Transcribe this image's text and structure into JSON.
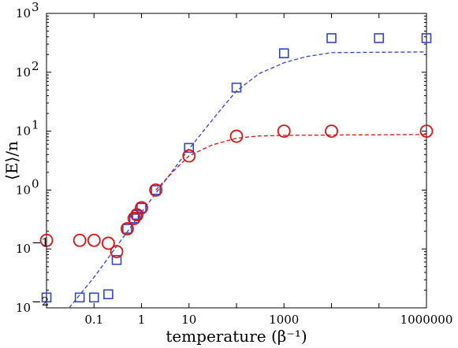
{
  "chart_data": {
    "type": "scatter",
    "title": "",
    "xlabel": "temperature (β⁻¹)",
    "ylabel": "⟨E⟩/n",
    "x_scale": "log",
    "y_scale": "log",
    "xlim": [
      0.01,
      1000000
    ],
    "ylim": [
      0.01,
      1000
    ],
    "grid": false,
    "x_tick_labels": [
      {
        "value": 0.1,
        "label": "0.1"
      },
      {
        "value": 1,
        "label": "1"
      },
      {
        "value": 10,
        "label": "10"
      },
      {
        "value": 1000,
        "label": "1000"
      },
      {
        "value": 1000000,
        "label": "1000000"
      }
    ],
    "y_tick_labels": [
      {
        "value": 0.01,
        "base": "10",
        "exp": "−2"
      },
      {
        "value": 0.1,
        "base": "10",
        "exp": "−1"
      },
      {
        "value": 1,
        "base": "10",
        "exp": "0"
      },
      {
        "value": 10,
        "base": "10",
        "exp": "1"
      },
      {
        "value": 100,
        "base": "10",
        "exp": "2"
      },
      {
        "value": 1000,
        "base": "10",
        "exp": "3"
      }
    ],
    "series": [
      {
        "marker": "square",
        "color": "#3344cc",
        "points": [
          [
            0.01,
            0.015
          ],
          [
            0.05,
            0.015
          ],
          [
            0.1,
            0.015
          ],
          [
            0.2,
            0.017
          ],
          [
            0.3,
            0.065
          ],
          [
            0.5,
            0.22
          ],
          [
            0.7,
            0.33
          ],
          [
            0.8,
            0.38
          ],
          [
            1.0,
            0.5
          ],
          [
            2.0,
            1.0
          ],
          [
            10,
            5.2
          ],
          [
            100,
            55
          ],
          [
            1000,
            210
          ],
          [
            10000,
            380
          ],
          [
            100000,
            380
          ],
          [
            1000000,
            380
          ]
        ]
      },
      {
        "marker": "circle",
        "color": "#dd1111",
        "points": [
          [
            0.01,
            0.14
          ],
          [
            0.05,
            0.14
          ],
          [
            0.1,
            0.14
          ],
          [
            0.2,
            0.125
          ],
          [
            0.3,
            0.09
          ],
          [
            0.5,
            0.22
          ],
          [
            0.7,
            0.33
          ],
          [
            0.8,
            0.38
          ],
          [
            1.0,
            0.5
          ],
          [
            2.0,
            1.0
          ],
          [
            10,
            3.8
          ],
          [
            100,
            8.2
          ],
          [
            1000,
            10
          ],
          [
            10000,
            10
          ],
          [
            1000000,
            10
          ]
        ]
      }
    ],
    "fit_lines": [
      {
        "color": "#3344cc",
        "style": "dashed",
        "points": [
          [
            0.03,
            0.01
          ],
          [
            0.1,
            0.033
          ],
          [
            1,
            0.42
          ],
          [
            10,
            5.0
          ],
          [
            50,
            25
          ],
          [
            100,
            48
          ],
          [
            300,
            95
          ],
          [
            1000,
            145
          ],
          [
            3000,
            185
          ],
          [
            10000,
            215
          ],
          [
            1000000,
            222
          ]
        ]
      },
      {
        "color": "#dd1111",
        "style": "dashed",
        "points": [
          [
            2,
            1.0
          ],
          [
            5,
            2.2
          ],
          [
            10,
            3.8
          ],
          [
            30,
            5.8
          ],
          [
            100,
            7.6
          ],
          [
            300,
            8.3
          ],
          [
            1000,
            8.5
          ],
          [
            1000000,
            8.8
          ]
        ]
      }
    ]
  }
}
